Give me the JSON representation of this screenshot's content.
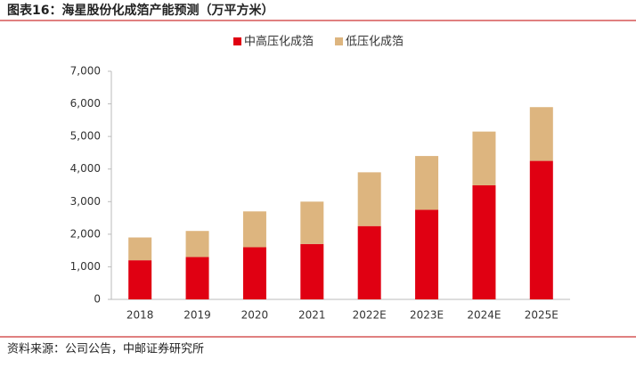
{
  "chart_data": {
    "type": "stacked_bar",
    "title": "图表16：海星股份化成箔产能预测（万平方米）",
    "source": "资料来源：公司公告，中邮证券研究所",
    "categories": [
      "2018",
      "2019",
      "2020",
      "2021",
      "2022E",
      "2023E",
      "2024E",
      "2025E"
    ],
    "series": [
      {
        "name": "中高压化成箔",
        "color": "#e00012",
        "values": [
          1200,
          1300,
          1600,
          1700,
          2250,
          2750,
          3500,
          4250
        ]
      },
      {
        "name": "低压化成箔",
        "color": "#ddb57f",
        "values": [
          700,
          800,
          1100,
          1300,
          1650,
          1650,
          1650,
          1650
        ]
      }
    ],
    "ylim": [
      0,
      7000
    ],
    "yticks": [
      0,
      {
        "value": 1000,
        "label": "1,000"
      },
      {
        "value": 2000,
        "label": "2,000"
      },
      {
        "value": 3000,
        "label": "3,000"
      },
      {
        "value": 4000,
        "label": "4,000"
      },
      {
        "value": 5000,
        "label": "5,000"
      },
      {
        "value": 6000,
        "label": "6,000"
      },
      {
        "value": 7000,
        "label": "7,000"
      }
    ],
    "legend": "top"
  }
}
